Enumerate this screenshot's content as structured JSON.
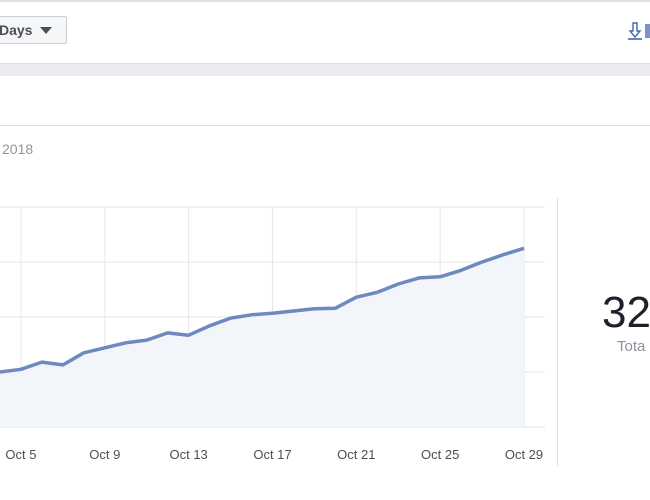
{
  "toolbar": {
    "range_label": "Days",
    "download_icon": "download-icon"
  },
  "header": {
    "date_fragment": "2018"
  },
  "summary": {
    "value": "32",
    "label": "Tota"
  },
  "colors": {
    "line": "#6d89bf",
    "fill": "#f2f5fa",
    "grid": "#e5e6e9"
  },
  "chart_data": {
    "type": "area",
    "x": [
      "Oct 4",
      "Oct 5",
      "Oct 6",
      "Oct 7",
      "Oct 8",
      "Oct 9",
      "Oct 10",
      "Oct 11",
      "Oct 12",
      "Oct 13",
      "Oct 14",
      "Oct 15",
      "Oct 16",
      "Oct 17",
      "Oct 18",
      "Oct 19",
      "Oct 20",
      "Oct 21",
      "Oct 22",
      "Oct 23",
      "Oct 24",
      "Oct 25",
      "Oct 26",
      "Oct 27",
      "Oct 28",
      "Oct 29"
    ],
    "values": [
      1.0,
      1.05,
      1.18,
      1.13,
      1.35,
      1.44,
      1.53,
      1.58,
      1.71,
      1.67,
      1.84,
      1.98,
      2.04,
      2.07,
      2.11,
      2.15,
      2.16,
      2.36,
      2.45,
      2.6,
      2.71,
      2.73,
      2.85,
      3.0,
      3.13,
      3.25
    ],
    "tick_labels": [
      "Oct 5",
      "Oct 9",
      "Oct 13",
      "Oct 17",
      "Oct 21",
      "Oct 25",
      "Oct 29"
    ],
    "ylim": [
      0,
      4
    ],
    "grid": true,
    "title": "",
    "xlabel": "",
    "ylabel": ""
  }
}
